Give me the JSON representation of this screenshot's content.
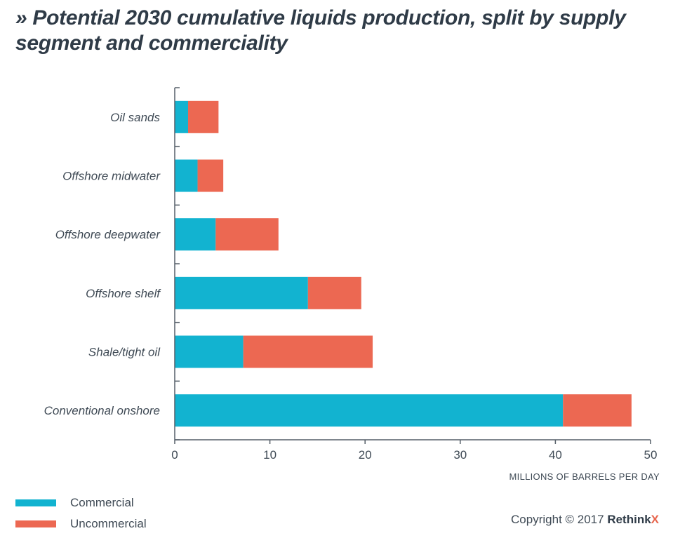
{
  "title": "» Potential 2030 cumulative liquids production, split by supply segment and commerciality",
  "copyright": {
    "prefix": "Copyright © 2017",
    "brand_main": "Rethink",
    "brand_x": "X"
  },
  "colors": {
    "commercial": "#12b3d0",
    "uncommercial": "#ec6852",
    "axis": "#555f69"
  },
  "chart_data": {
    "type": "bar",
    "orientation": "horizontal",
    "stacked": true,
    "categories": [
      "Oil sands",
      "Offshore midwater",
      "Offshore deepwater",
      "Offshore shelf",
      "Shale/tight oil",
      "Conventional onshore"
    ],
    "series": [
      {
        "name": "Commercial",
        "color": "#12b3d0",
        "values": [
          1.4,
          2.4,
          4.3,
          14.0,
          7.2,
          40.8
        ]
      },
      {
        "name": "Uncommercial",
        "color": "#ec6852",
        "values": [
          3.2,
          2.7,
          6.6,
          5.6,
          13.6,
          7.2
        ]
      }
    ],
    "xlabel": "MILLIONS OF BARRELS PER DAY",
    "ylabel": "",
    "xlim": [
      0,
      50
    ],
    "xticks": [
      0,
      10,
      20,
      30,
      40,
      50
    ],
    "grid": false,
    "legend_position": "bottom-left"
  }
}
